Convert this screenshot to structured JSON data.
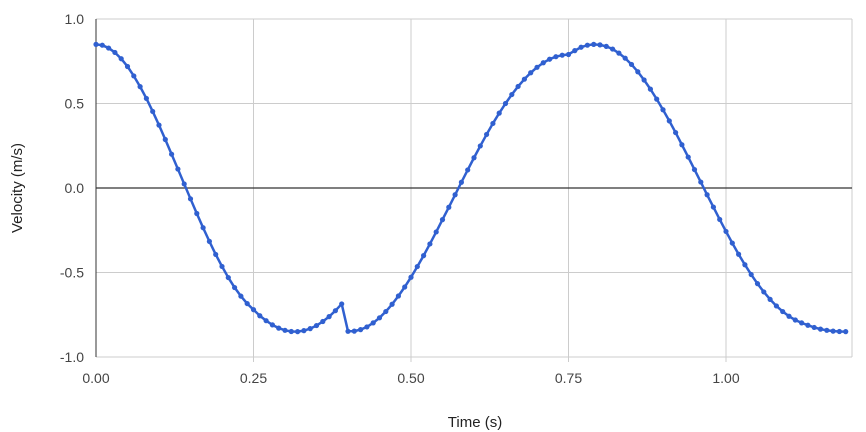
{
  "chart_data": {
    "type": "line",
    "title": "",
    "xlabel": "Time (s)",
    "ylabel": "Velocity (m/s)",
    "xlim": [
      0,
      1.2
    ],
    "ylim": [
      -1.0,
      1.0
    ],
    "x_ticks": [
      0,
      0.25,
      0.5,
      0.75,
      1.0
    ],
    "x_tick_labels": [
      "0.00",
      "0.25",
      "0.50",
      "0.75",
      "1.00"
    ],
    "y_ticks": [
      1.0,
      0.5,
      0.0,
      -0.5,
      -1.0
    ],
    "y_tick_labels": [
      "1.0",
      "0.5",
      "0.0",
      "-0.5",
      "-1.0"
    ],
    "grid": true,
    "legend": "none",
    "colors": {
      "series": "#3060d0",
      "grid": "#cccccc",
      "zero_line": "#333333"
    },
    "series": [
      {
        "x": [
          0.0,
          0.01,
          0.02,
          0.03,
          0.04,
          0.05,
          0.06,
          0.07,
          0.08,
          0.09,
          0.1,
          0.11,
          0.12,
          0.13,
          0.14,
          0.15,
          0.16,
          0.17,
          0.18,
          0.19,
          0.2,
          0.21,
          0.22,
          0.23,
          0.24,
          0.25,
          0.26,
          0.27,
          0.28,
          0.29,
          0.3,
          0.31,
          0.32,
          0.33,
          0.34,
          0.35,
          0.36,
          0.37,
          0.38,
          0.39,
          0.4,
          0.41,
          0.42,
          0.43,
          0.44,
          0.45,
          0.46,
          0.47,
          0.48,
          0.49,
          0.5,
          0.51,
          0.52,
          0.53,
          0.54,
          0.55,
          0.56,
          0.57,
          0.58,
          0.59,
          0.6,
          0.61,
          0.62,
          0.63,
          0.64,
          0.65,
          0.66,
          0.67,
          0.68,
          0.69,
          0.7,
          0.71,
          0.72,
          0.73,
          0.74,
          0.75,
          0.76,
          0.77,
          0.78,
          0.79,
          0.8,
          0.81,
          0.82,
          0.83,
          0.84,
          0.85,
          0.86,
          0.87,
          0.88,
          0.89,
          0.9,
          0.91,
          0.92,
          0.93,
          0.94,
          0.95,
          0.96,
          0.97,
          0.98,
          0.99,
          1.0,
          1.01,
          1.02,
          1.03,
          1.04,
          1.05,
          1.06,
          1.07,
          1.08,
          1.09,
          1.1,
          1.11,
          1.12,
          1.13,
          1.14,
          1.15,
          1.16,
          1.17,
          1.18,
          1.19
        ],
        "y": [
          0.85,
          0.845,
          0.828,
          0.802,
          0.765,
          0.719,
          0.663,
          0.6,
          0.53,
          0.453,
          0.372,
          0.287,
          0.2,
          0.112,
          0.024,
          -0.064,
          -0.151,
          -0.235,
          -0.316,
          -0.393,
          -0.464,
          -0.53,
          -0.589,
          -0.64,
          -0.684,
          -0.72,
          -0.756,
          -0.785,
          -0.81,
          -0.829,
          -0.842,
          -0.849,
          -0.85,
          -0.844,
          -0.832,
          -0.814,
          -0.79,
          -0.761,
          -0.726,
          -0.686,
          -0.848,
          -0.847,
          -0.838,
          -0.822,
          -0.798,
          -0.768,
          -0.731,
          -0.688,
          -0.639,
          -0.586,
          -0.528,
          -0.465,
          -0.4,
          -0.331,
          -0.26,
          -0.187,
          -0.114,
          -0.04,
          0.034,
          0.107,
          0.179,
          0.249,
          0.317,
          0.382,
          0.443,
          0.5,
          0.553,
          0.601,
          0.644,
          0.682,
          0.714,
          0.741,
          0.762,
          0.777,
          0.786,
          0.79,
          0.813,
          0.833,
          0.845,
          0.85,
          0.847,
          0.838,
          0.822,
          0.798,
          0.768,
          0.731,
          0.688,
          0.639,
          0.585,
          0.526,
          0.463,
          0.397,
          0.328,
          0.256,
          0.183,
          0.109,
          0.035,
          -0.04,
          -0.113,
          -0.186,
          -0.257,
          -0.326,
          -0.392,
          -0.454,
          -0.512,
          -0.566,
          -0.615,
          -0.659,
          -0.698,
          -0.731,
          -0.759,
          -0.781,
          -0.798,
          -0.812,
          -0.825,
          -0.835,
          -0.842,
          -0.847,
          -0.849,
          -0.85
        ]
      }
    ]
  }
}
